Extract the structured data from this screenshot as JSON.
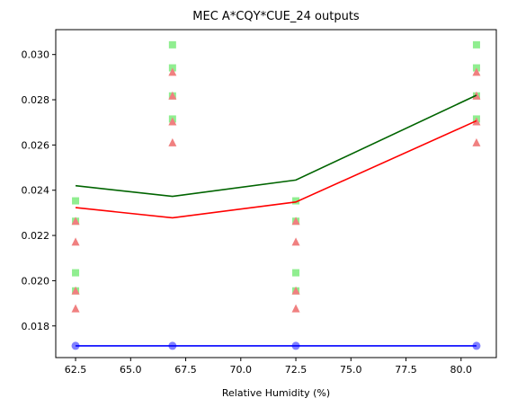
{
  "chart_data": {
    "type": "line",
    "title": "MEC A*CQY*CUE_24 outputs",
    "xlabel": "Relative Humidity (%)",
    "ylabel": "",
    "xlim": [
      61.6,
      81.6
    ],
    "ylim": [
      0.0166,
      0.0311
    ],
    "xticks": [
      62.5,
      65.0,
      67.5,
      70.0,
      72.5,
      75.0,
      77.5,
      80.0
    ],
    "xtick_labels": [
      "62.5",
      "65.0",
      "67.5",
      "70.0",
      "72.5",
      "75.0",
      "77.5",
      "80.0"
    ],
    "yticks": [
      0.018,
      0.02,
      0.022,
      0.024,
      0.026,
      0.028,
      0.03
    ],
    "ytick_labels": [
      "0.018",
      "0.020",
      "0.022",
      "0.024",
      "0.026",
      "0.028",
      "0.030"
    ],
    "grid": false,
    "legend": "none",
    "x": [
      62.5,
      66.9,
      72.5,
      80.7
    ],
    "series": [
      {
        "kind": "line",
        "color": "#006400",
        "values": [
          0.0242,
          0.02373,
          0.02445,
          0.0282
        ]
      },
      {
        "kind": "line",
        "color": "#ff0000",
        "values": [
          0.02323,
          0.02278,
          0.02348,
          0.02707
        ]
      },
      {
        "kind": "line",
        "color": "#0000ff",
        "values": [
          0.01712,
          0.01712,
          0.01712,
          0.01712
        ]
      },
      {
        "kind": "scatter",
        "marker": "square",
        "color": "#90ee90",
        "points": [
          [
            62.5,
            0.02353
          ],
          [
            62.5,
            0.02263
          ],
          [
            62.5,
            0.02035
          ],
          [
            62.5,
            0.01955
          ],
          [
            66.9,
            0.03043
          ],
          [
            66.9,
            0.02941
          ],
          [
            66.9,
            0.02817
          ],
          [
            66.9,
            0.02715
          ],
          [
            72.5,
            0.02353
          ],
          [
            72.5,
            0.02263
          ],
          [
            72.5,
            0.02035
          ],
          [
            72.5,
            0.01955
          ],
          [
            80.7,
            0.03043
          ],
          [
            80.7,
            0.02941
          ],
          [
            80.7,
            0.02817
          ],
          [
            80.7,
            0.02715
          ]
        ]
      },
      {
        "kind": "scatter",
        "marker": "triangle",
        "color": "#f08080",
        "points": [
          [
            62.5,
            0.02263
          ],
          [
            62.5,
            0.02171
          ],
          [
            62.5,
            0.01955
          ],
          [
            62.5,
            0.01876
          ],
          [
            66.9,
            0.02922
          ],
          [
            66.9,
            0.02817
          ],
          [
            66.9,
            0.02703
          ],
          [
            66.9,
            0.0261
          ],
          [
            72.5,
            0.02263
          ],
          [
            72.5,
            0.02171
          ],
          [
            72.5,
            0.01955
          ],
          [
            72.5,
            0.01876
          ],
          [
            80.7,
            0.02922
          ],
          [
            80.7,
            0.02817
          ],
          [
            80.7,
            0.02703
          ],
          [
            80.7,
            0.0261
          ]
        ]
      },
      {
        "kind": "scatter",
        "marker": "circle",
        "color": "#8080ff",
        "points": [
          [
            62.5,
            0.01712
          ],
          [
            66.9,
            0.01712
          ],
          [
            72.5,
            0.01712
          ],
          [
            80.7,
            0.01712
          ]
        ]
      }
    ]
  }
}
